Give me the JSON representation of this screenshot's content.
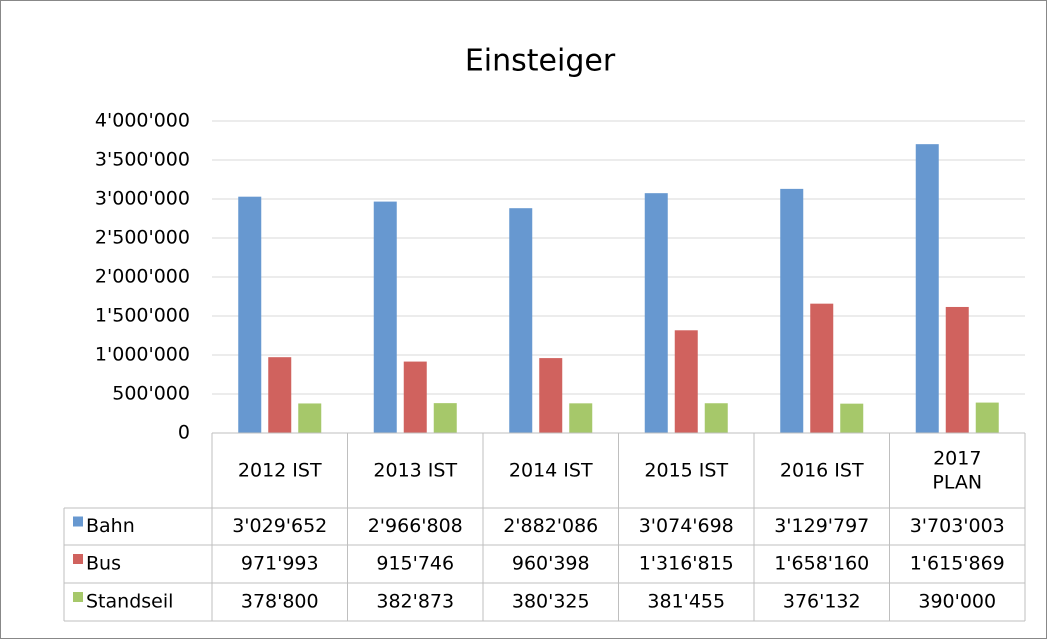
{
  "chart_data": {
    "type": "bar",
    "title": "Einsteiger",
    "categories": [
      "2012 IST",
      "2013 IST",
      "2014 IST",
      "2015 IST",
      "2016 IST",
      "2017 PLAN"
    ],
    "series": [
      {
        "name": "Bahn",
        "color": "#6798d0",
        "values": [
          3029652,
          2966808,
          2882086,
          3074698,
          3129797,
          3703003
        ],
        "value_labels": [
          "3'029'652",
          "2'966'808",
          "2'882'086",
          "3'074'698",
          "3'129'797",
          "3'703'003"
        ]
      },
      {
        "name": "Bus",
        "color": "#d0625e",
        "values": [
          971993,
          915746,
          960398,
          1316815,
          1658160,
          1615869
        ],
        "value_labels": [
          "971'993",
          "915'746",
          "960'398",
          "1'316'815",
          "1'658'160",
          "1'615'869"
        ]
      },
      {
        "name": "Standseil",
        "color": "#a6c86a",
        "values": [
          378800,
          382873,
          380325,
          381455,
          376132,
          390000
        ],
        "value_labels": [
          "378'800",
          "382'873",
          "380'325",
          "381'455",
          "376'132",
          "390'000"
        ]
      }
    ],
    "ylim": [
      0,
      4000000
    ],
    "yticks": [
      0,
      {
        "value": 500000,
        "label": "500'000"
      },
      {
        "value": 1000000,
        "label": "1'000'000"
      },
      {
        "value": 1500000,
        "label": "1'500'000"
      },
      {
        "value": 2000000,
        "label": "2'000'000"
      },
      {
        "value": 2500000,
        "label": "2'500'000"
      },
      {
        "value": 3000000,
        "label": "3'000'000"
      },
      {
        "value": 3500000,
        "label": "3'500'000"
      },
      {
        "value": 4000000,
        "label": "4'000'000"
      }
    ],
    "grid": true
  }
}
